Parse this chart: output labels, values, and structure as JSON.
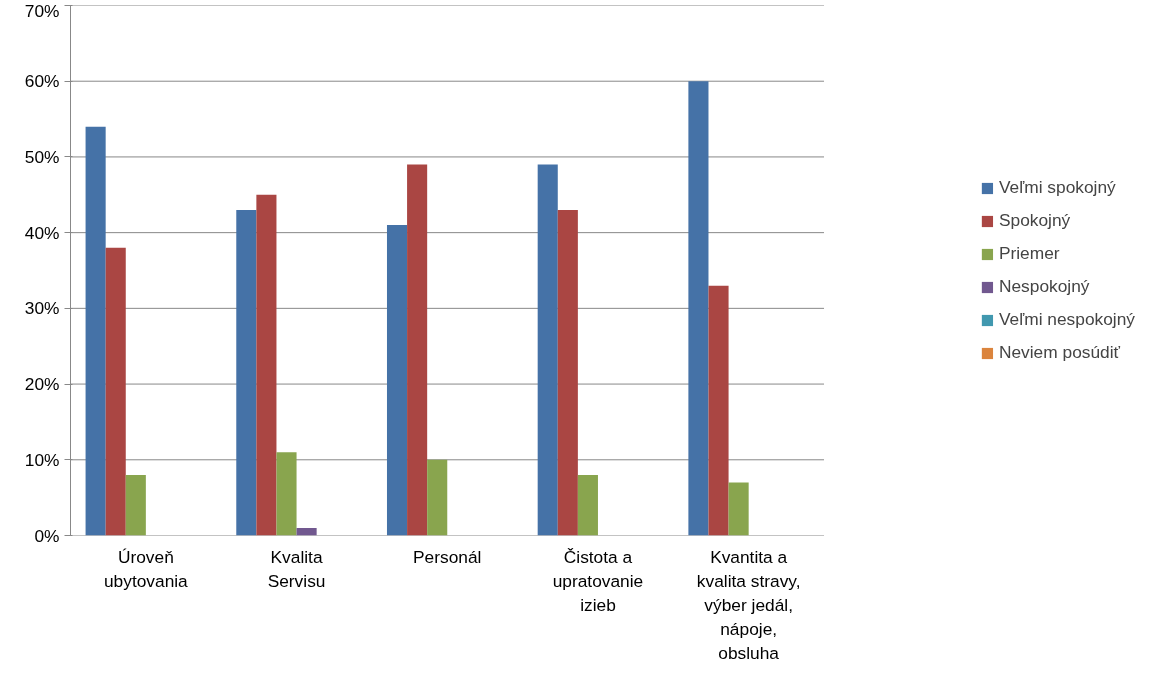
{
  "chart_data": {
    "type": "bar",
    "categories": [
      "Úroveň\nubytovania",
      "Kvalita\nServisu",
      "Personál",
      "Čistota a\nupratovanie\nizieb",
      "Kvantita a\nkvalita stravy,\nvýber jedál,\nnápoje,\nobsluha"
    ],
    "series": [
      {
        "name": "Veľmi spokojný",
        "color": "#4572a7",
        "values": [
          54,
          43,
          41,
          49,
          60
        ]
      },
      {
        "name": "Spokojný",
        "color": "#aa4643",
        "values": [
          38,
          45,
          49,
          43,
          33
        ]
      },
      {
        "name": "Priemer",
        "color": "#89a54e",
        "values": [
          8,
          11,
          10,
          8,
          7
        ]
      },
      {
        "name": "Nespokojný",
        "color": "#71588f",
        "values": [
          0,
          1,
          0,
          0,
          0
        ]
      },
      {
        "name": "Veľmi nespokojný",
        "color": "#4198af",
        "values": [
          0,
          0,
          0,
          0,
          0
        ]
      },
      {
        "name": "Neviem posúdiť",
        "color": "#db843d",
        "values": [
          0,
          0,
          0,
          0,
          0
        ]
      }
    ],
    "ylim": [
      0,
      70
    ],
    "yticks": [
      {
        "value": 0,
        "label": "0%"
      },
      {
        "value": 10,
        "label": "10%"
      },
      {
        "value": 20,
        "label": "20%"
      },
      {
        "value": 30,
        "label": "30%"
      },
      {
        "value": 40,
        "label": "40%"
      },
      {
        "value": 50,
        "label": "50%"
      },
      {
        "value": 60,
        "label": "60%"
      },
      {
        "value": 70,
        "label": "70%"
      }
    ],
    "grid": "y",
    "legend": "right"
  }
}
